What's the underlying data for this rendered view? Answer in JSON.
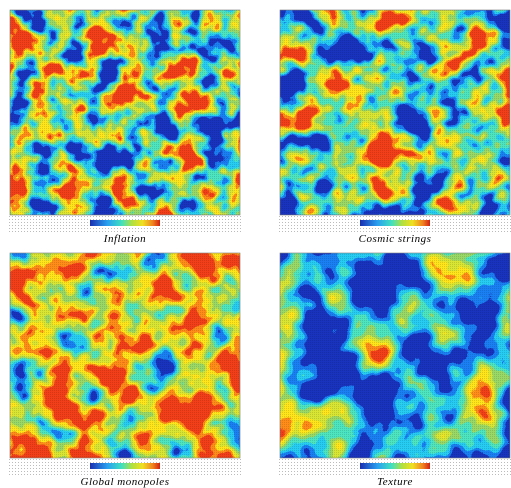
{
  "panels": [
    {
      "caption": "Inflation"
    },
    {
      "caption": "Cosmic strings"
    },
    {
      "caption": "Global monopoles"
    },
    {
      "caption": "Texture"
    }
  ]
}
